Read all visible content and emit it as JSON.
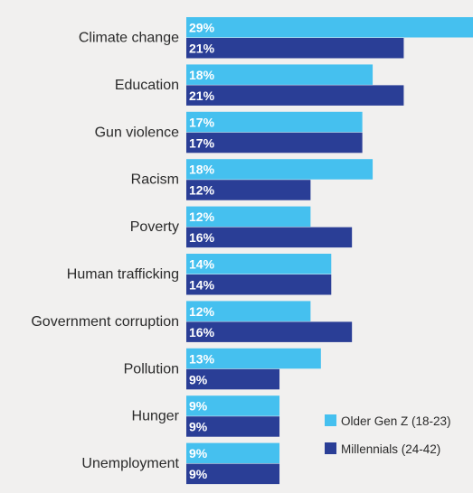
{
  "chart_data": {
    "type": "bar",
    "orientation": "horizontal",
    "categories": [
      "Climate change",
      "Education",
      "Gun violence",
      "Racism",
      "Poverty",
      "Human trafficking",
      "Government corruption",
      "Pollution",
      "Hunger",
      "Unemployment"
    ],
    "series": [
      {
        "name": "Older Gen Z (18-23)",
        "color": "#45c0ef",
        "values": [
          29,
          18,
          17,
          18,
          12,
          14,
          12,
          13,
          9,
          9
        ],
        "labels": [
          "29%",
          "18%",
          "17%",
          "18%",
          "12%",
          "14%",
          "12%",
          "13%",
          "9%",
          "9%"
        ]
      },
      {
        "name": "Millennials (24-42)",
        "color": "#2a3e96",
        "values": [
          21,
          21,
          17,
          12,
          16,
          14,
          16,
          9,
          9,
          9
        ],
        "labels": [
          "21%",
          "21%",
          "17%",
          "12%",
          "16%",
          "14%",
          "16%",
          "9%",
          "9%",
          "9%"
        ]
      }
    ],
    "xlim": [
      0,
      29
    ],
    "unit": "%",
    "grid": false,
    "legend_position": "bottom-right"
  }
}
